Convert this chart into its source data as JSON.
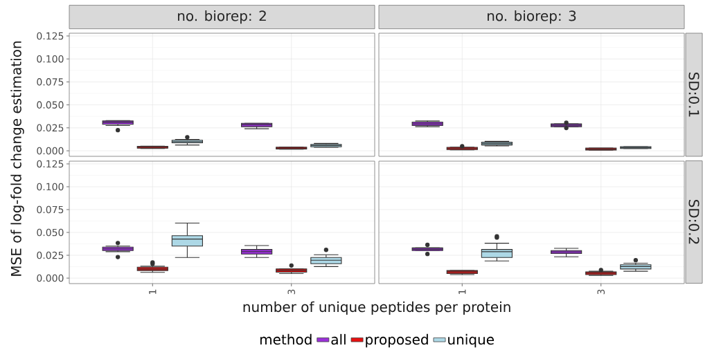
{
  "chart_data": [
    {
      "type": "box",
      "title": "no. biorep: 2",
      "ylabel": "MSE of log-fold change estimation",
      "legend": "bottom",
      "legend_title": "method",
      "grid": true,
      "tick_labels": "y",
      "categories": [
        "1",
        "3"
      ],
      "ylim": [
        -0.006,
        0.128
      ],
      "yticks": [
        {
          "value": 0,
          "label": "0.000"
        },
        {
          "value": 0.025,
          "label": "0.025"
        },
        {
          "value": 0.05,
          "label": "0.050"
        },
        {
          "value": 0.075,
          "label": "0.075"
        },
        {
          "value": 0.1,
          "label": "0.100"
        },
        {
          "value": 0.125,
          "label": "0.125"
        }
      ],
      "series": [
        {
          "name": "all",
          "color": "#9b30d9",
          "boxes": [
            {
              "low": 0.0275,
              "q1": 0.0288,
              "median": 0.031,
              "q3": 0.0325,
              "high": 0.033,
              "outliers": [
                0.0225
              ]
            },
            {
              "low": 0.024,
              "q1": 0.0263,
              "median": 0.0285,
              "q3": 0.03,
              "high": 0.03
            }
          ]
        },
        {
          "name": "proposed",
          "color": "#e81010",
          "boxes": [
            {
              "low": 0.0025,
              "q1": 0.0028,
              "median": 0.0038,
              "q3": 0.0048,
              "high": 0.005
            },
            {
              "low": 0.0018,
              "q1": 0.002,
              "median": 0.003,
              "q3": 0.004,
              "high": 0.0042
            }
          ]
        },
        {
          "name": "unique",
          "color": "#add8e6",
          "boxes": [
            {
              "low": 0.0063,
              "q1": 0.0088,
              "median": 0.01,
              "q3": 0.0115,
              "high": 0.0125,
              "outliers": [
                0.0148
              ]
            },
            {
              "low": 0.0038,
              "q1": 0.0043,
              "median": 0.0058,
              "q3": 0.007,
              "high": 0.008
            }
          ]
        }
      ]
    },
    {
      "type": "box",
      "title": "no. biorep: 3",
      "annotations": [
        "SD:0.1"
      ],
      "grid": true,
      "tick_labels": false,
      "categories": [
        "1",
        "3"
      ],
      "ylim": [
        -0.006,
        0.128
      ],
      "yticks": [
        {
          "value": 0,
          "label": null
        },
        {
          "value": 0.025,
          "label": null
        },
        {
          "value": 0.05,
          "label": null
        },
        {
          "value": 0.075,
          "label": null
        },
        {
          "value": 0.1,
          "label": null
        },
        {
          "value": 0.125,
          "label": null
        }
      ],
      "series": [
        {
          "color": "#9b30d9",
          "boxes": [
            {
              "low": 0.0263,
              "q1": 0.0275,
              "median": 0.0293,
              "q3": 0.0313,
              "high": 0.0325
            },
            {
              "low": 0.0263,
              "q1": 0.0263,
              "median": 0.0278,
              "q3": 0.0293,
              "high": 0.0293,
              "outliers": [
                0.0305,
                0.0248
              ]
            }
          ]
        },
        {
          "color": "#e81010",
          "boxes": [
            {
              "low": 0.001,
              "q1": 0.0013,
              "median": 0.0025,
              "q3": 0.0038,
              "high": 0.004,
              "outliers": [
                0.005
              ]
            },
            {
              "low": 0.0008,
              "q1": 0.0008,
              "median": 0.0018,
              "q3": 0.003,
              "high": 0.003
            }
          ]
        },
        {
          "color": "#add8e6",
          "boxes": [
            {
              "low": 0.0053,
              "q1": 0.0063,
              "median": 0.0078,
              "q3": 0.0093,
              "high": 0.0103
            },
            {
              "low": 0.0025,
              "q1": 0.0025,
              "median": 0.0035,
              "q3": 0.0045,
              "high": 0.0045
            }
          ]
        }
      ]
    },
    {
      "type": "box",
      "xlabel": "number of unique peptides per protein",
      "grid": true,
      "categories": [
        "1",
        "3"
      ],
      "ylim": [
        -0.006,
        0.128
      ],
      "yticks": [
        {
          "value": 0,
          "label": "0.000"
        },
        {
          "value": 0.025,
          "label": "0.025"
        },
        {
          "value": 0.05,
          "label": "0.050"
        },
        {
          "value": 0.075,
          "label": "0.075"
        },
        {
          "value": 0.1,
          "label": "0.100"
        },
        {
          "value": 0.125,
          "label": "0.125"
        }
      ],
      "series": [
        {
          "color": "#9b30d9",
          "boxes": [
            {
              "low": 0.0289,
              "q1": 0.0301,
              "median": 0.032,
              "q3": 0.0339,
              "high": 0.0351,
              "outliers": [
                0.0384,
                0.0231
              ]
            },
            {
              "low": 0.0226,
              "q1": 0.0264,
              "median": 0.029,
              "q3": 0.0314,
              "high": 0.0356
            }
          ]
        },
        {
          "color": "#e81010",
          "boxes": [
            {
              "low": 0.0063,
              "q1": 0.0083,
              "median": 0.01,
              "q3": 0.012,
              "high": 0.013,
              "outliers": [
                0.0171,
                0.0156
              ]
            },
            {
              "low": 0.005,
              "q1": 0.0065,
              "median": 0.0083,
              "q3": 0.01,
              "high": 0.01,
              "outliers": [
                0.0138
              ]
            }
          ]
        },
        {
          "color": "#add8e6",
          "boxes": [
            {
              "low": 0.0226,
              "q1": 0.0351,
              "median": 0.0427,
              "q3": 0.0464,
              "high": 0.0602
            },
            {
              "low": 0.0126,
              "q1": 0.0158,
              "median": 0.0196,
              "q3": 0.0226,
              "high": 0.0256,
              "outliers": [
                0.0309
              ]
            }
          ]
        }
      ]
    },
    {
      "type": "box",
      "annotations": [
        "SD:0.2"
      ],
      "grid": true,
      "tick_labels": "x",
      "categories": [
        "1",
        "3"
      ],
      "ylim": [
        -0.006,
        0.128
      ],
      "yticks": [
        {
          "value": 0,
          "label": null
        },
        {
          "value": 0.025,
          "label": null
        },
        {
          "value": 0.05,
          "label": null
        },
        {
          "value": 0.075,
          "label": null
        },
        {
          "value": 0.1,
          "label": null
        },
        {
          "value": 0.125,
          "label": null
        }
      ],
      "series": [
        {
          "color": "#9b30d9",
          "boxes": [
            {
              "low": 0.0301,
              "q1": 0.0301,
              "median": 0.0316,
              "q3": 0.0331,
              "high": 0.0331,
              "outliers": [
                0.0364,
                0.0264
              ]
            },
            {
              "low": 0.0233,
              "q1": 0.0269,
              "median": 0.0286,
              "q3": 0.0301,
              "high": 0.0326
            }
          ]
        },
        {
          "color": "#e81010",
          "boxes": [
            {
              "low": 0.0038,
              "q1": 0.005,
              "median": 0.0068,
              "q3": 0.0083,
              "high": 0.0083
            },
            {
              "low": 0.003,
              "q1": 0.0038,
              "median": 0.0053,
              "q3": 0.0068,
              "high": 0.0075,
              "outliers": [
                0.0088
              ]
            }
          ]
        },
        {
          "color": "#add8e6",
          "boxes": [
            {
              "low": 0.0188,
              "q1": 0.0226,
              "median": 0.0289,
              "q3": 0.0314,
              "high": 0.0382,
              "outliers": [
                0.0444,
                0.0457
              ]
            },
            {
              "low": 0.0075,
              "q1": 0.01,
              "median": 0.0126,
              "q3": 0.0146,
              "high": 0.0163,
              "outliers": [
                0.0196
              ]
            }
          ]
        }
      ]
    }
  ]
}
